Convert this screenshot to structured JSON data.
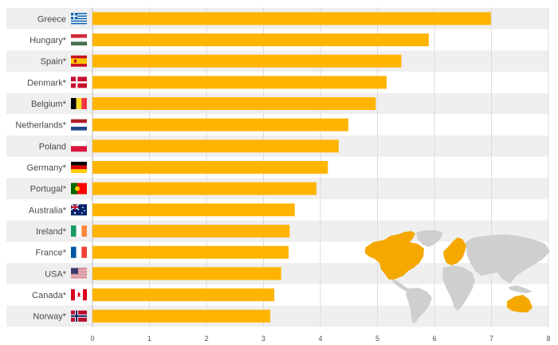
{
  "chart_data": {
    "type": "bar",
    "orientation": "horizontal",
    "categories": [
      "Greece",
      "Hungary*",
      "Spain*",
      "Denmark*",
      "Belgium*",
      "Netherlands*",
      "Poland",
      "Germany*",
      "Portugal*",
      "Australia*",
      "Ireland*",
      "France*",
      "USA*",
      "Canada*",
      "Norway*"
    ],
    "values": [
      6.99,
      5.9,
      5.42,
      5.16,
      4.97,
      4.49,
      4.32,
      4.13,
      3.93,
      3.55,
      3.46,
      3.44,
      3.31,
      3.19,
      3.12
    ],
    "flags": [
      "greece",
      "hungary",
      "spain",
      "denmark",
      "belgium",
      "netherlands",
      "poland",
      "germany",
      "portugal",
      "australia",
      "ireland",
      "france",
      "usa",
      "canada",
      "norway"
    ],
    "xlim": [
      0,
      8
    ],
    "xticks": [
      "0",
      "1",
      "2",
      "3",
      "4",
      "5",
      "6",
      "7",
      "8"
    ],
    "grid": true,
    "colors": {
      "bar": "#ffb400",
      "row_band": "#efefef",
      "map_highlight": "#f5a800",
      "map_other": "#cfcfcf"
    }
  }
}
